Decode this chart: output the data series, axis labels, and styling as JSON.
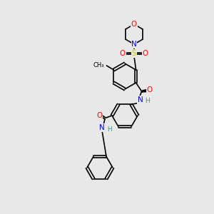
{
  "bg_color": "#e8e8e8",
  "bond_color": "#000000",
  "atom_colors": {
    "O": "#ff0000",
    "N": "#0000ff",
    "S": "#cccc00",
    "C": "#000000",
    "H": "#4a9090"
  },
  "font_size_atom": 7.5,
  "font_size_small": 6.5,
  "line_width": 1.2
}
